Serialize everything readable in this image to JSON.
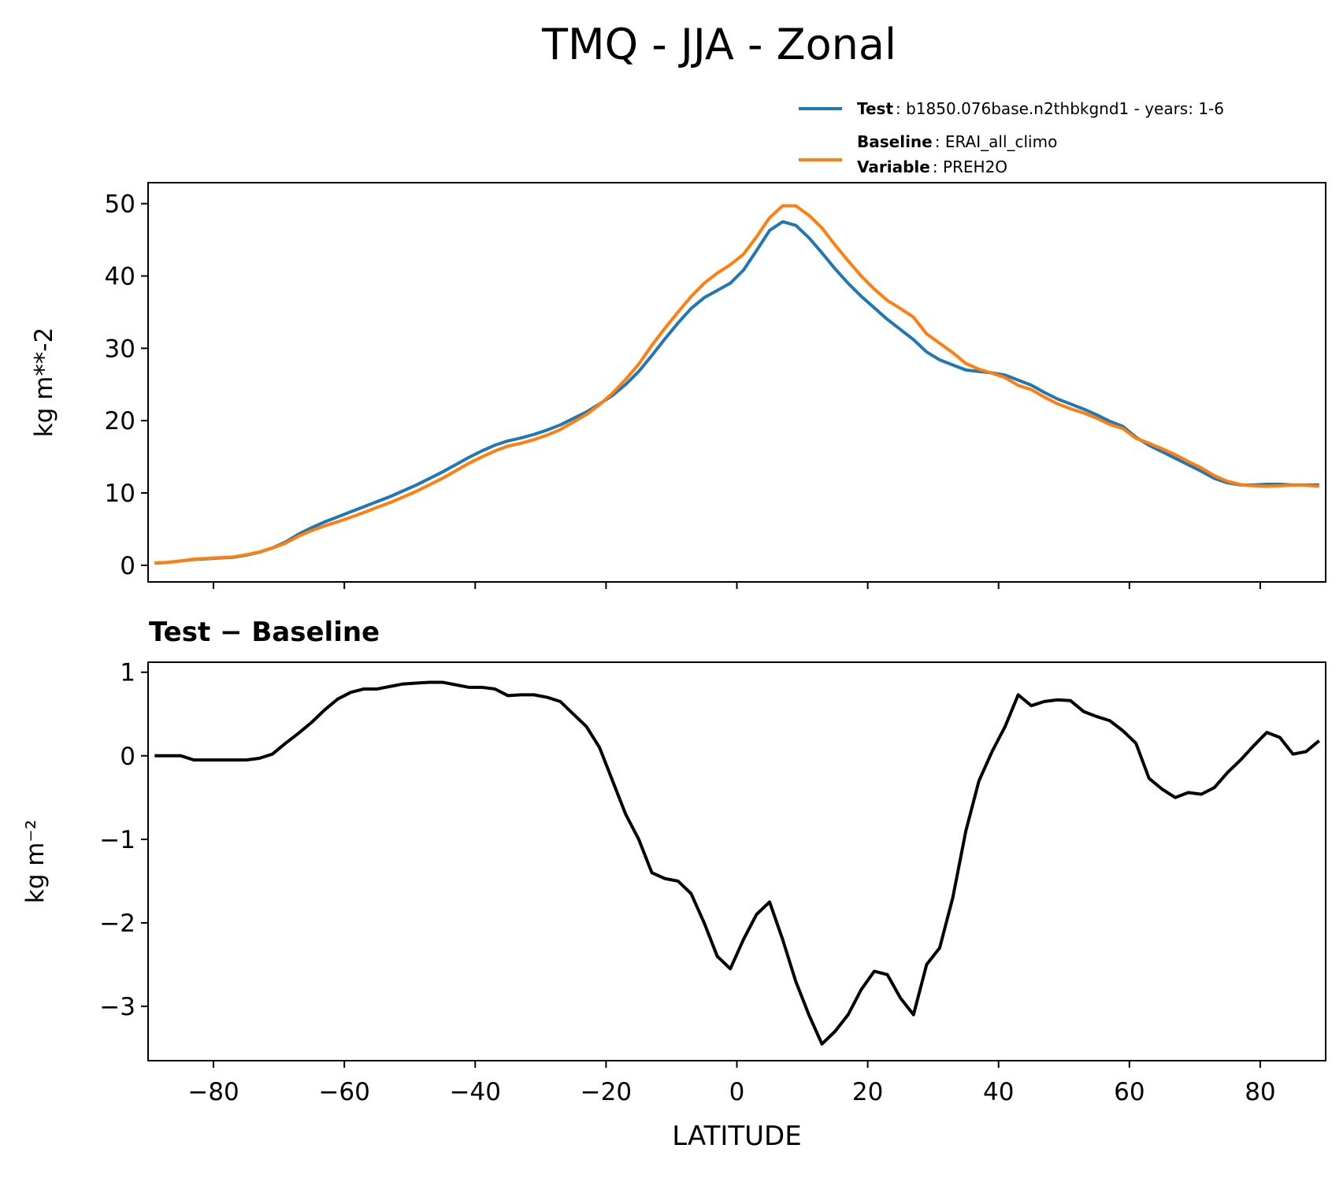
{
  "title": "TMQ - JJA - Zonal",
  "chart_data": [
    {
      "type": "line",
      "ylabel": "kg m**-2",
      "x": [
        -89,
        -87,
        -85,
        -83,
        -81,
        -79,
        -77,
        -75,
        -73,
        -71,
        -69,
        -67,
        -65,
        -63,
        -61,
        -59,
        -57,
        -55,
        -53,
        -51,
        -49,
        -47,
        -45,
        -43,
        -41,
        -39,
        -37,
        -35,
        -33,
        -31,
        -29,
        -27,
        -25,
        -23,
        -21,
        -19,
        -17,
        -15,
        -13,
        -11,
        -9,
        -7,
        -5,
        -3,
        -1,
        1,
        3,
        5,
        7,
        9,
        11,
        13,
        15,
        17,
        19,
        21,
        23,
        25,
        27,
        29,
        31,
        33,
        35,
        37,
        39,
        41,
        43,
        45,
        47,
        49,
        51,
        53,
        55,
        57,
        59,
        61,
        63,
        65,
        67,
        69,
        71,
        73,
        75,
        77,
        79,
        81,
        83,
        85,
        87,
        89
      ],
      "series": [
        {
          "name": "Test",
          "label": ": b1850.076base.n2thbkgnd1 - years: 1-6",
          "color": "#1f77b4",
          "values": [
            0.3,
            0.4,
            0.6,
            0.8,
            0.9,
            1.0,
            1.1,
            1.4,
            1.8,
            2.4,
            3.2,
            4.3,
            5.2,
            6.0,
            6.7,
            7.4,
            8.1,
            8.8,
            9.5,
            10.3,
            11.1,
            12.0,
            12.9,
            13.9,
            14.9,
            15.8,
            16.6,
            17.2,
            17.6,
            18.1,
            18.7,
            19.4,
            20.3,
            21.2,
            22.3,
            23.5,
            25.0,
            26.8,
            29.0,
            31.3,
            33.5,
            35.5,
            37.0,
            38.0,
            39.0,
            40.8,
            43.5,
            46.3,
            47.5,
            47.0,
            45.3,
            43.2,
            41.0,
            39.0,
            37.2,
            35.6,
            34.0,
            32.6,
            31.2,
            29.5,
            28.4,
            27.7,
            27.0,
            26.8,
            26.6,
            26.3,
            25.6,
            24.9,
            23.9,
            23.0,
            22.3,
            21.6,
            20.8,
            19.9,
            19.2,
            17.7,
            16.6,
            15.7,
            14.8,
            13.9,
            13.0,
            12.0,
            11.4,
            11.1,
            11.1,
            11.2,
            11.2,
            11.1,
            11.1,
            11.1
          ]
        },
        {
          "name": "Baseline",
          "label": ": ERAI_all_climo",
          "extra_name": "Variable",
          "extra_label": ": PREH2O",
          "color": "#ff7f0e",
          "values": [
            0.3,
            0.4,
            0.6,
            0.85,
            0.95,
            1.05,
            1.15,
            1.45,
            1.83,
            2.38,
            3.05,
            4.03,
            4.8,
            5.45,
            6.02,
            6.64,
            7.3,
            8.0,
            8.67,
            9.44,
            10.23,
            11.12,
            12.02,
            13.05,
            14.08,
            14.98,
            15.8,
            16.48,
            16.87,
            17.37,
            18.0,
            18.75,
            19.8,
            20.85,
            22.2,
            23.8,
            25.7,
            27.8,
            30.4,
            32.77,
            35.0,
            37.15,
            39.0,
            40.4,
            41.55,
            43.0,
            45.4,
            48.05,
            49.7,
            49.7,
            48.4,
            46.65,
            44.3,
            42.1,
            40.0,
            38.18,
            36.62,
            35.5,
            34.3,
            32.0,
            30.7,
            29.4,
            27.9,
            27.1,
            26.55,
            25.95,
            24.87,
            24.3,
            23.25,
            22.33,
            21.64,
            21.07,
            20.33,
            19.48,
            18.9,
            17.55,
            16.87,
            16.1,
            15.3,
            14.34,
            13.46,
            12.38,
            11.6,
            11.15,
            10.98,
            10.92,
            10.98,
            11.08,
            11.05,
            10.92
          ]
        }
      ],
      "xlim": [
        -90,
        90
      ],
      "ylim": [
        -2.3,
        52.9
      ],
      "xticks": [
        -80,
        -60,
        -40,
        -20,
        0,
        20,
        40,
        60,
        80
      ],
      "yticks": [
        0,
        10,
        20,
        30,
        40,
        50
      ]
    },
    {
      "type": "line",
      "title": "Test − Baseline",
      "ylabel": "kg m⁻²",
      "xlabel": "LATITUDE",
      "x": [
        -89,
        -87,
        -85,
        -83,
        -81,
        -79,
        -77,
        -75,
        -73,
        -71,
        -69,
        -67,
        -65,
        -63,
        -61,
        -59,
        -57,
        -55,
        -53,
        -51,
        -49,
        -47,
        -45,
        -43,
        -41,
        -39,
        -37,
        -35,
        -33,
        -31,
        -29,
        -27,
        -25,
        -23,
        -21,
        -19,
        -17,
        -15,
        -13,
        -11,
        -9,
        -7,
        -5,
        -3,
        -1,
        1,
        3,
        5,
        7,
        9,
        11,
        13,
        15,
        17,
        19,
        21,
        23,
        25,
        27,
        29,
        31,
        33,
        35,
        37,
        39,
        41,
        43,
        45,
        47,
        49,
        51,
        53,
        55,
        57,
        59,
        61,
        63,
        65,
        67,
        69,
        71,
        73,
        75,
        77,
        79,
        81,
        83,
        85,
        87,
        89
      ],
      "series": [
        {
          "name": "Test − Baseline",
          "color": "#000000",
          "values": [
            0,
            0,
            0,
            -0.05,
            -0.05,
            -0.05,
            -0.05,
            -0.05,
            -0.03,
            0.02,
            0.15,
            0.27,
            0.4,
            0.55,
            0.68,
            0.76,
            0.8,
            0.8,
            0.83,
            0.86,
            0.87,
            0.88,
            0.88,
            0.85,
            0.82,
            0.82,
            0.8,
            0.72,
            0.73,
            0.73,
            0.7,
            0.65,
            0.5,
            0.35,
            0.1,
            -0.3,
            -0.7,
            -1.0,
            -1.4,
            -1.47,
            -1.5,
            -1.65,
            -2.0,
            -2.4,
            -2.55,
            -2.2,
            -1.9,
            -1.75,
            -2.2,
            -2.7,
            -3.1,
            -3.45,
            -3.3,
            -3.1,
            -2.8,
            -2.58,
            -2.62,
            -2.9,
            -3.1,
            -2.5,
            -2.3,
            -1.7,
            -0.9,
            -0.3,
            0.05,
            0.35,
            0.73,
            0.6,
            0.65,
            0.67,
            0.66,
            0.53,
            0.47,
            0.42,
            0.3,
            0.15,
            -0.27,
            -0.4,
            -0.5,
            -0.44,
            -0.46,
            -0.38,
            -0.2,
            -0.05,
            0.12,
            0.28,
            0.22,
            0.02,
            0.05,
            0.18
          ]
        }
      ],
      "xlim": [
        -90,
        90
      ],
      "ylim": [
        -3.65,
        1.12
      ],
      "xticks": [
        {
          "value": -80,
          "label": "−80"
        },
        {
          "value": -60,
          "label": "−60"
        },
        {
          "value": -40,
          "label": "−40"
        },
        {
          "value": -20,
          "label": "−20"
        },
        0,
        20,
        40,
        60,
        80
      ],
      "yticks": [
        {
          "value": -3,
          "label": "−3"
        },
        {
          "value": -2,
          "label": "−2"
        },
        {
          "value": -1,
          "label": "−1"
        },
        0,
        1
      ]
    }
  ]
}
